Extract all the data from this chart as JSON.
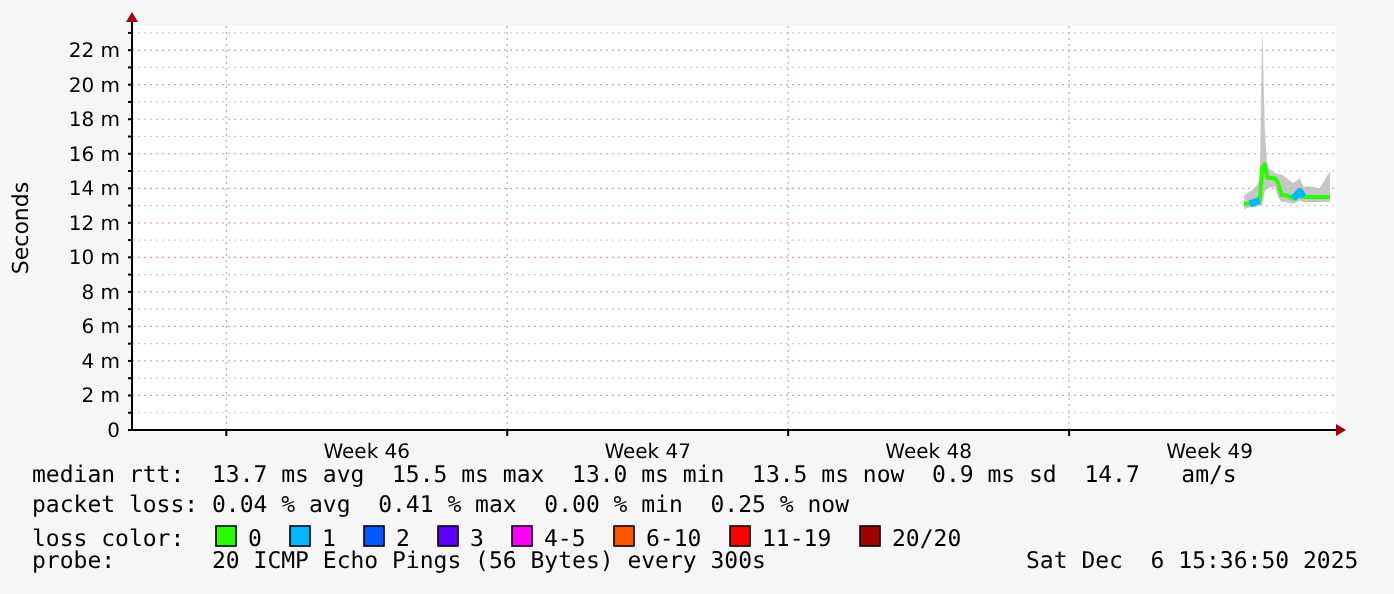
{
  "chart_data": {
    "type": "line",
    "ylabel": "Seconds",
    "x": [
      "2025-12-05T08:40",
      "2025-12-05T12:00",
      "2025-12-05T15:00",
      "2025-12-05T18:00",
      "2025-12-05T19:30",
      "2025-12-05T21:00",
      "2025-12-05T22:30",
      "2025-12-06T03:00",
      "2025-12-06T05:00",
      "2025-12-06T07:00",
      "2025-12-06T10:00",
      "2025-12-06T14:00",
      "2025-12-06T18:00",
      "2025-12-06T20:00",
      "2025-12-07T00:00",
      "2025-12-07T06:00",
      "2025-12-07T12:00"
    ],
    "series": [
      {
        "name": "0",
        "color": "#26ff00",
        "values": [
          13.1,
          13.1,
          13.2,
          13.3,
          15.2,
          15.4,
          14.6,
          14.6,
          14.3,
          13.6,
          13.6,
          13.4,
          13.8,
          13.5,
          13.5,
          13.5,
          13.5
        ],
        "lower": [
          12.8,
          12.9,
          12.9,
          13,
          13,
          13.8,
          14,
          14.1,
          13.5,
          13.2,
          13.2,
          13.1,
          13.3,
          13.2,
          13.2,
          13.2,
          13.2
        ],
        "upper": [
          13.6,
          13.8,
          14,
          14.5,
          23.3,
          17.5,
          15.2,
          14.9,
          14.8,
          14.8,
          14.6,
          14.3,
          14.6,
          14.1,
          14.1,
          14,
          15
        ]
      },
      {
        "name": "1",
        "color": "#00b8ff",
        "values": [
          null,
          13.1,
          13.2,
          13.3,
          null,
          null,
          null,
          null,
          null,
          null,
          null,
          13.4,
          13.8,
          13.5,
          null,
          null,
          null
        ]
      },
      {
        "name": "2",
        "color": "#0059ff",
        "values": [
          null,
          null,
          null,
          null,
          null,
          null,
          null,
          null,
          null,
          null,
          null,
          null,
          null,
          null,
          null,
          null,
          null
        ]
      },
      {
        "name": "3",
        "color": "#5e00ff",
        "values": [
          null,
          null,
          null,
          null,
          null,
          null,
          null,
          null,
          null,
          null,
          null,
          null,
          null,
          null,
          null,
          null,
          null
        ]
      },
      {
        "name": "4-5",
        "color": "#ff00ff",
        "values": [
          null,
          null,
          null,
          null,
          null,
          null,
          null,
          null,
          null,
          null,
          null,
          null,
          null,
          null,
          null,
          null,
          null
        ]
      },
      {
        "name": "6-10",
        "color": "#ff5500",
        "values": [
          null,
          null,
          null,
          null,
          null,
          null,
          null,
          null,
          null,
          null,
          null,
          null,
          null,
          null,
          null,
          null,
          null
        ]
      },
      {
        "name": "11-19",
        "color": "#ff0000",
        "values": [
          null,
          null,
          null,
          null,
          null,
          null,
          null,
          null,
          null,
          null,
          null,
          null,
          null,
          null,
          null,
          null,
          null
        ]
      },
      {
        "name": "20/20",
        "color": "#a10000",
        "values": [
          null,
          null,
          null,
          null,
          null,
          null,
          null,
          null,
          null,
          null,
          null,
          null,
          null,
          null,
          null,
          null,
          null
        ]
      }
    ],
    "legend": "bottom",
    "legend_title": "loss color:",
    "xlim": [
      "2025-11-07T15:36",
      "2025-12-07T15:36"
    ],
    "xticks": [
      {
        "value": "2025-11-10",
        "label": null
      },
      {
        "value": "2025-11-13T12:00",
        "label": "Week 46"
      },
      {
        "value": "2025-11-17",
        "label": null
      },
      {
        "value": "2025-11-20T12:00",
        "label": "Week 47"
      },
      {
        "value": "2025-11-24",
        "label": null
      },
      {
        "value": "2025-11-27T12:00",
        "label": "Week 48"
      },
      {
        "value": "2025-12-01",
        "label": null
      },
      {
        "value": "2025-12-04T12:00",
        "label": "Week 49"
      }
    ],
    "ylim": [
      0,
      23.4
    ],
    "yticks": [
      0,
      {
        "value": 1,
        "label": null
      },
      {
        "value": 2,
        "label": "2 m"
      },
      {
        "value": 3,
        "label": null
      },
      {
        "value": 4,
        "label": "4 m"
      },
      {
        "value": 5,
        "label": null
      },
      {
        "value": 6,
        "label": "6 m"
      },
      {
        "value": 7,
        "label": null
      },
      {
        "value": 8,
        "label": "8 m"
      },
      {
        "value": 9,
        "label": null
      },
      {
        "value": 10,
        "label": "10 m"
      },
      {
        "value": 11,
        "label": null
      },
      {
        "value": 12,
        "label": "12 m"
      },
      {
        "value": 13,
        "label": null
      },
      {
        "value": 14,
        "label": "14 m"
      },
      {
        "value": 15,
        "label": null
      },
      {
        "value": 16,
        "label": "16 m"
      },
      {
        "value": 17,
        "label": null
      },
      {
        "value": 18,
        "label": "18 m"
      },
      {
        "value": 19,
        "label": null
      },
      {
        "value": 20,
        "label": "20 m"
      },
      {
        "value": 21,
        "label": null
      },
      {
        "value": 22,
        "label": "22 m"
      },
      {
        "value": 23,
        "label": null
      }
    ],
    "grid": true,
    "line_style": "solid",
    "marker": "none",
    "annotations": [
      "median rtt:  13.7 ms avg  15.5 ms max  13.0 ms min  13.5 ms now  0.9 ms sd  14.7   am/s",
      "packet loss: 0.04 % avg  0.41 % max  0.00 % min  0.25 % now",
      "probe:       20 ICMP Echo Pings (56 Bytes) every 300s",
      "Sat Dec  6 15:36:50 2025"
    ]
  }
}
